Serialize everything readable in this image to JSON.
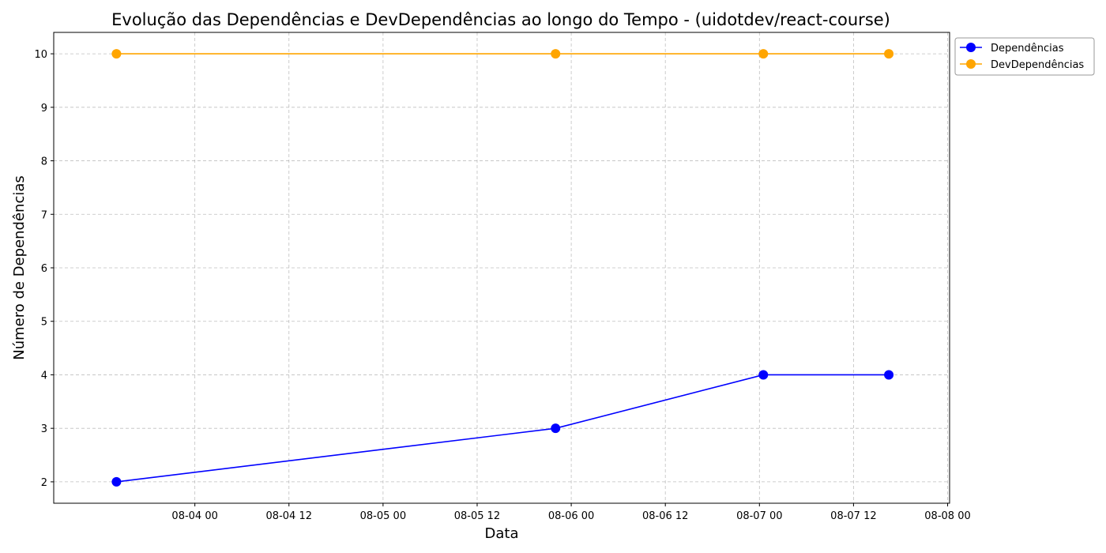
{
  "chart_data": {
    "type": "line",
    "title": "Evolução das Dependências e DevDependências ao longo do Tempo - (uidotdev/react-course)",
    "xlabel": "Data",
    "ylabel": "Número de Dependências",
    "x_ticks": [
      "08-04 00",
      "08-04 12",
      "08-05 00",
      "08-05 12",
      "08-06 00",
      "08-06 12",
      "08-07 00",
      "08-07 12",
      "08-08 00"
    ],
    "x_tick_values": [
      "2024-08-04T00:00",
      "2024-08-04T12:00",
      "2024-08-05T00:00",
      "2024-08-05T12:00",
      "2024-08-06T00:00",
      "2024-08-06T12:00",
      "2024-08-07T00:00",
      "2024-08-07T12:00",
      "2024-08-08T00:00"
    ],
    "xlim": [
      "2024-08-03T06:00",
      "2024-08-08T00:15"
    ],
    "ylim": [
      1.6,
      10.4
    ],
    "y_ticks": [
      2,
      3,
      4,
      5,
      6,
      7,
      8,
      9,
      10
    ],
    "grid": true,
    "legend_position": "outside top-right",
    "x": [
      "2024-08-03T14:00",
      "2024-08-05T22:00",
      "2024-08-07T00:30",
      "2024-08-07T16:30"
    ],
    "series": [
      {
        "name": "Dependências",
        "color": "#0000ff",
        "marker": "circle",
        "values": [
          2,
          3,
          4,
          4
        ]
      },
      {
        "name": "DevDependências",
        "color": "#ffa500",
        "marker": "circle",
        "values": [
          10,
          10,
          10,
          10
        ]
      }
    ]
  }
}
